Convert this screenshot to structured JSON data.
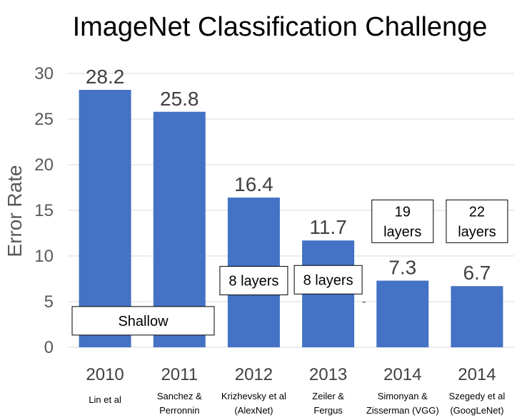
{
  "chart_data": {
    "type": "bar",
    "title": "ImageNet Classification Challenge",
    "ylabel": "Error Rate",
    "xlabel": "",
    "ylim": [
      0,
      30
    ],
    "yticks": [
      0,
      5,
      10,
      15,
      20,
      25,
      30
    ],
    "grid": true,
    "bar_color": "#4472c4",
    "categories": [
      "2010",
      "2011",
      "2012",
      "2013",
      "2014",
      "2014"
    ],
    "sublabels": [
      [
        "Lin et al"
      ],
      [
        "Sanchez &",
        "Perronnin"
      ],
      [
        "Krizhevsky et al",
        "(AlexNet)"
      ],
      [
        "Zeiler &",
        "Fergus"
      ],
      [
        "Simonyan &",
        "Zisserman (VGG)"
      ],
      [
        "Szegedy et al",
        "(GoogLeNet)"
      ]
    ],
    "values": [
      28.2,
      25.8,
      16.4,
      11.7,
      7.3,
      6.7
    ],
    "data_labels": [
      "28.2",
      "25.8",
      "16.4",
      "11.7",
      "7.3",
      "6.7"
    ],
    "annotations": [
      {
        "lines": [
          "Shallow"
        ],
        "category_index": 0,
        "span": 2,
        "at_value": 2.9
      },
      {
        "lines": [
          "8 layers"
        ],
        "category_index": 2,
        "span": 1,
        "at_value": 7.3
      },
      {
        "lines": [
          "8 layers"
        ],
        "category_index": 3,
        "span": 1,
        "at_value": 7.4
      },
      {
        "lines": [
          "19",
          "layers"
        ],
        "category_index": 4,
        "span": 1,
        "at_value": 13.8
      },
      {
        "lines": [
          "22",
          "layers"
        ],
        "category_index": 5,
        "span": 1,
        "at_value": 13.8
      }
    ]
  }
}
